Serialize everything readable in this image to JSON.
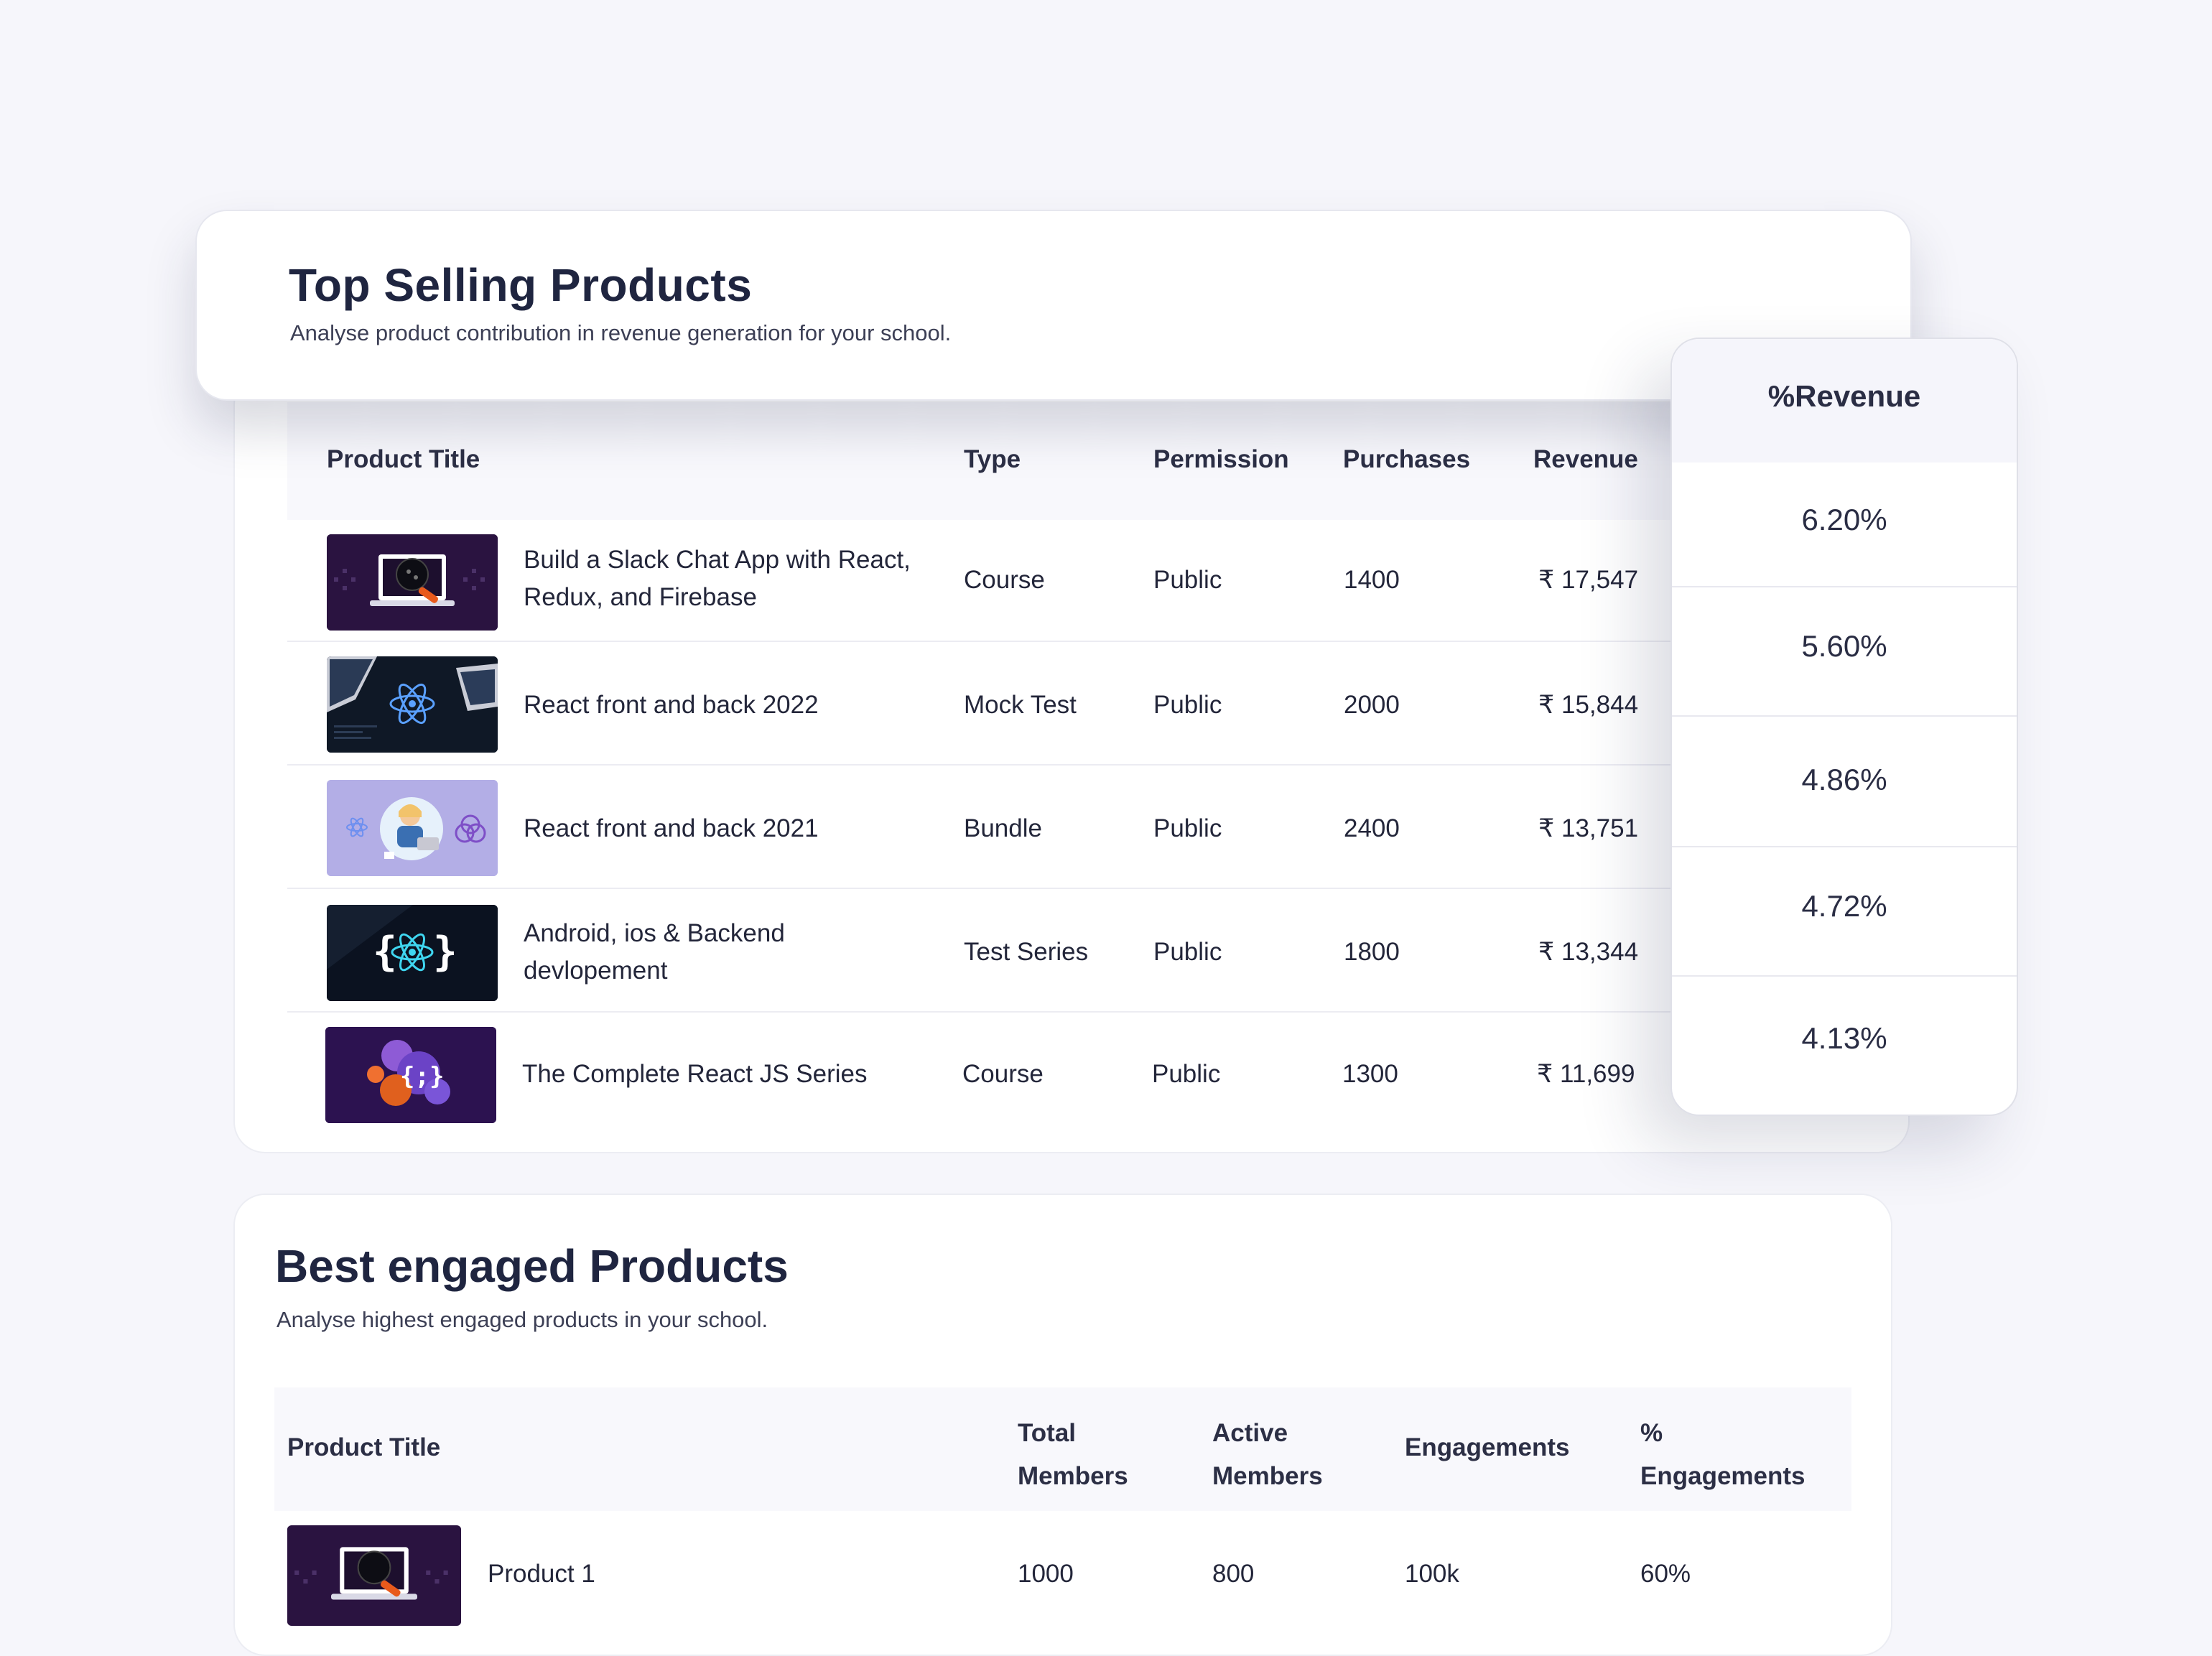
{
  "top_selling": {
    "title": "Top Selling Products",
    "subtitle": "Analyse product contribution in revenue generation for your school.",
    "columns": {
      "product_title": "Product Title",
      "type": "Type",
      "permission": "Permission",
      "purchases": "Purchases",
      "revenue": "Revenue",
      "percent_revenue": "%Revenue"
    },
    "rows": [
      {
        "title": "Build a Slack Chat App with React, Redux, and Firebase",
        "type": "Course",
        "permission": "Public",
        "purchases": "1400",
        "revenue": "₹ 17,547",
        "percent_revenue": "6.20%"
      },
      {
        "title": "React front and back 2022",
        "type": "Mock Test",
        "permission": "Public",
        "purchases": "2000",
        "revenue": "₹ 15,844",
        "percent_revenue": "5.60%"
      },
      {
        "title": "React front and back 2021",
        "type": "Bundle",
        "permission": "Public",
        "purchases": "2400",
        "revenue": "₹ 13,751",
        "percent_revenue": "4.86%"
      },
      {
        "title": "Android, ios & Backend devlopement",
        "type": "Test Series",
        "permission": "Public",
        "purchases": "1800",
        "revenue": "₹ 13,344",
        "percent_revenue": "4.72%"
      },
      {
        "title": "The Complete React JS Series",
        "type": "Course",
        "permission": "Public",
        "purchases": "1300",
        "revenue": "₹ 11,699",
        "percent_revenue": "4.13%"
      }
    ]
  },
  "best_engaged": {
    "title": "Best engaged Products",
    "subtitle": "Analyse highest engaged products in your school.",
    "columns": {
      "product_title": "Product Title",
      "total_members_1": "Total",
      "total_members_2": "Members",
      "active_members_1": "Active",
      "active_members_2": "Members",
      "engagements": "Engagements",
      "percent_engagements_1": "%",
      "percent_engagements_2": "Engagements"
    },
    "rows": [
      {
        "title": "Product 1",
        "total_members": "1000",
        "active_members": "800",
        "engagements": "100k",
        "percent_engagements": "60%"
      }
    ]
  },
  "thumbnails": [
    "slack-chat-thumbnail",
    "react-atom-laptops-thumbnail",
    "react-developer-illustration-thumbnail",
    "react-braces-thumbnail",
    "react-js-series-thumbnail"
  ],
  "colors": {
    "background": "#f6f6fb",
    "text": "#1f2237",
    "header_bg": "#f8f8fc",
    "accent_purple": "#2a1340"
  }
}
